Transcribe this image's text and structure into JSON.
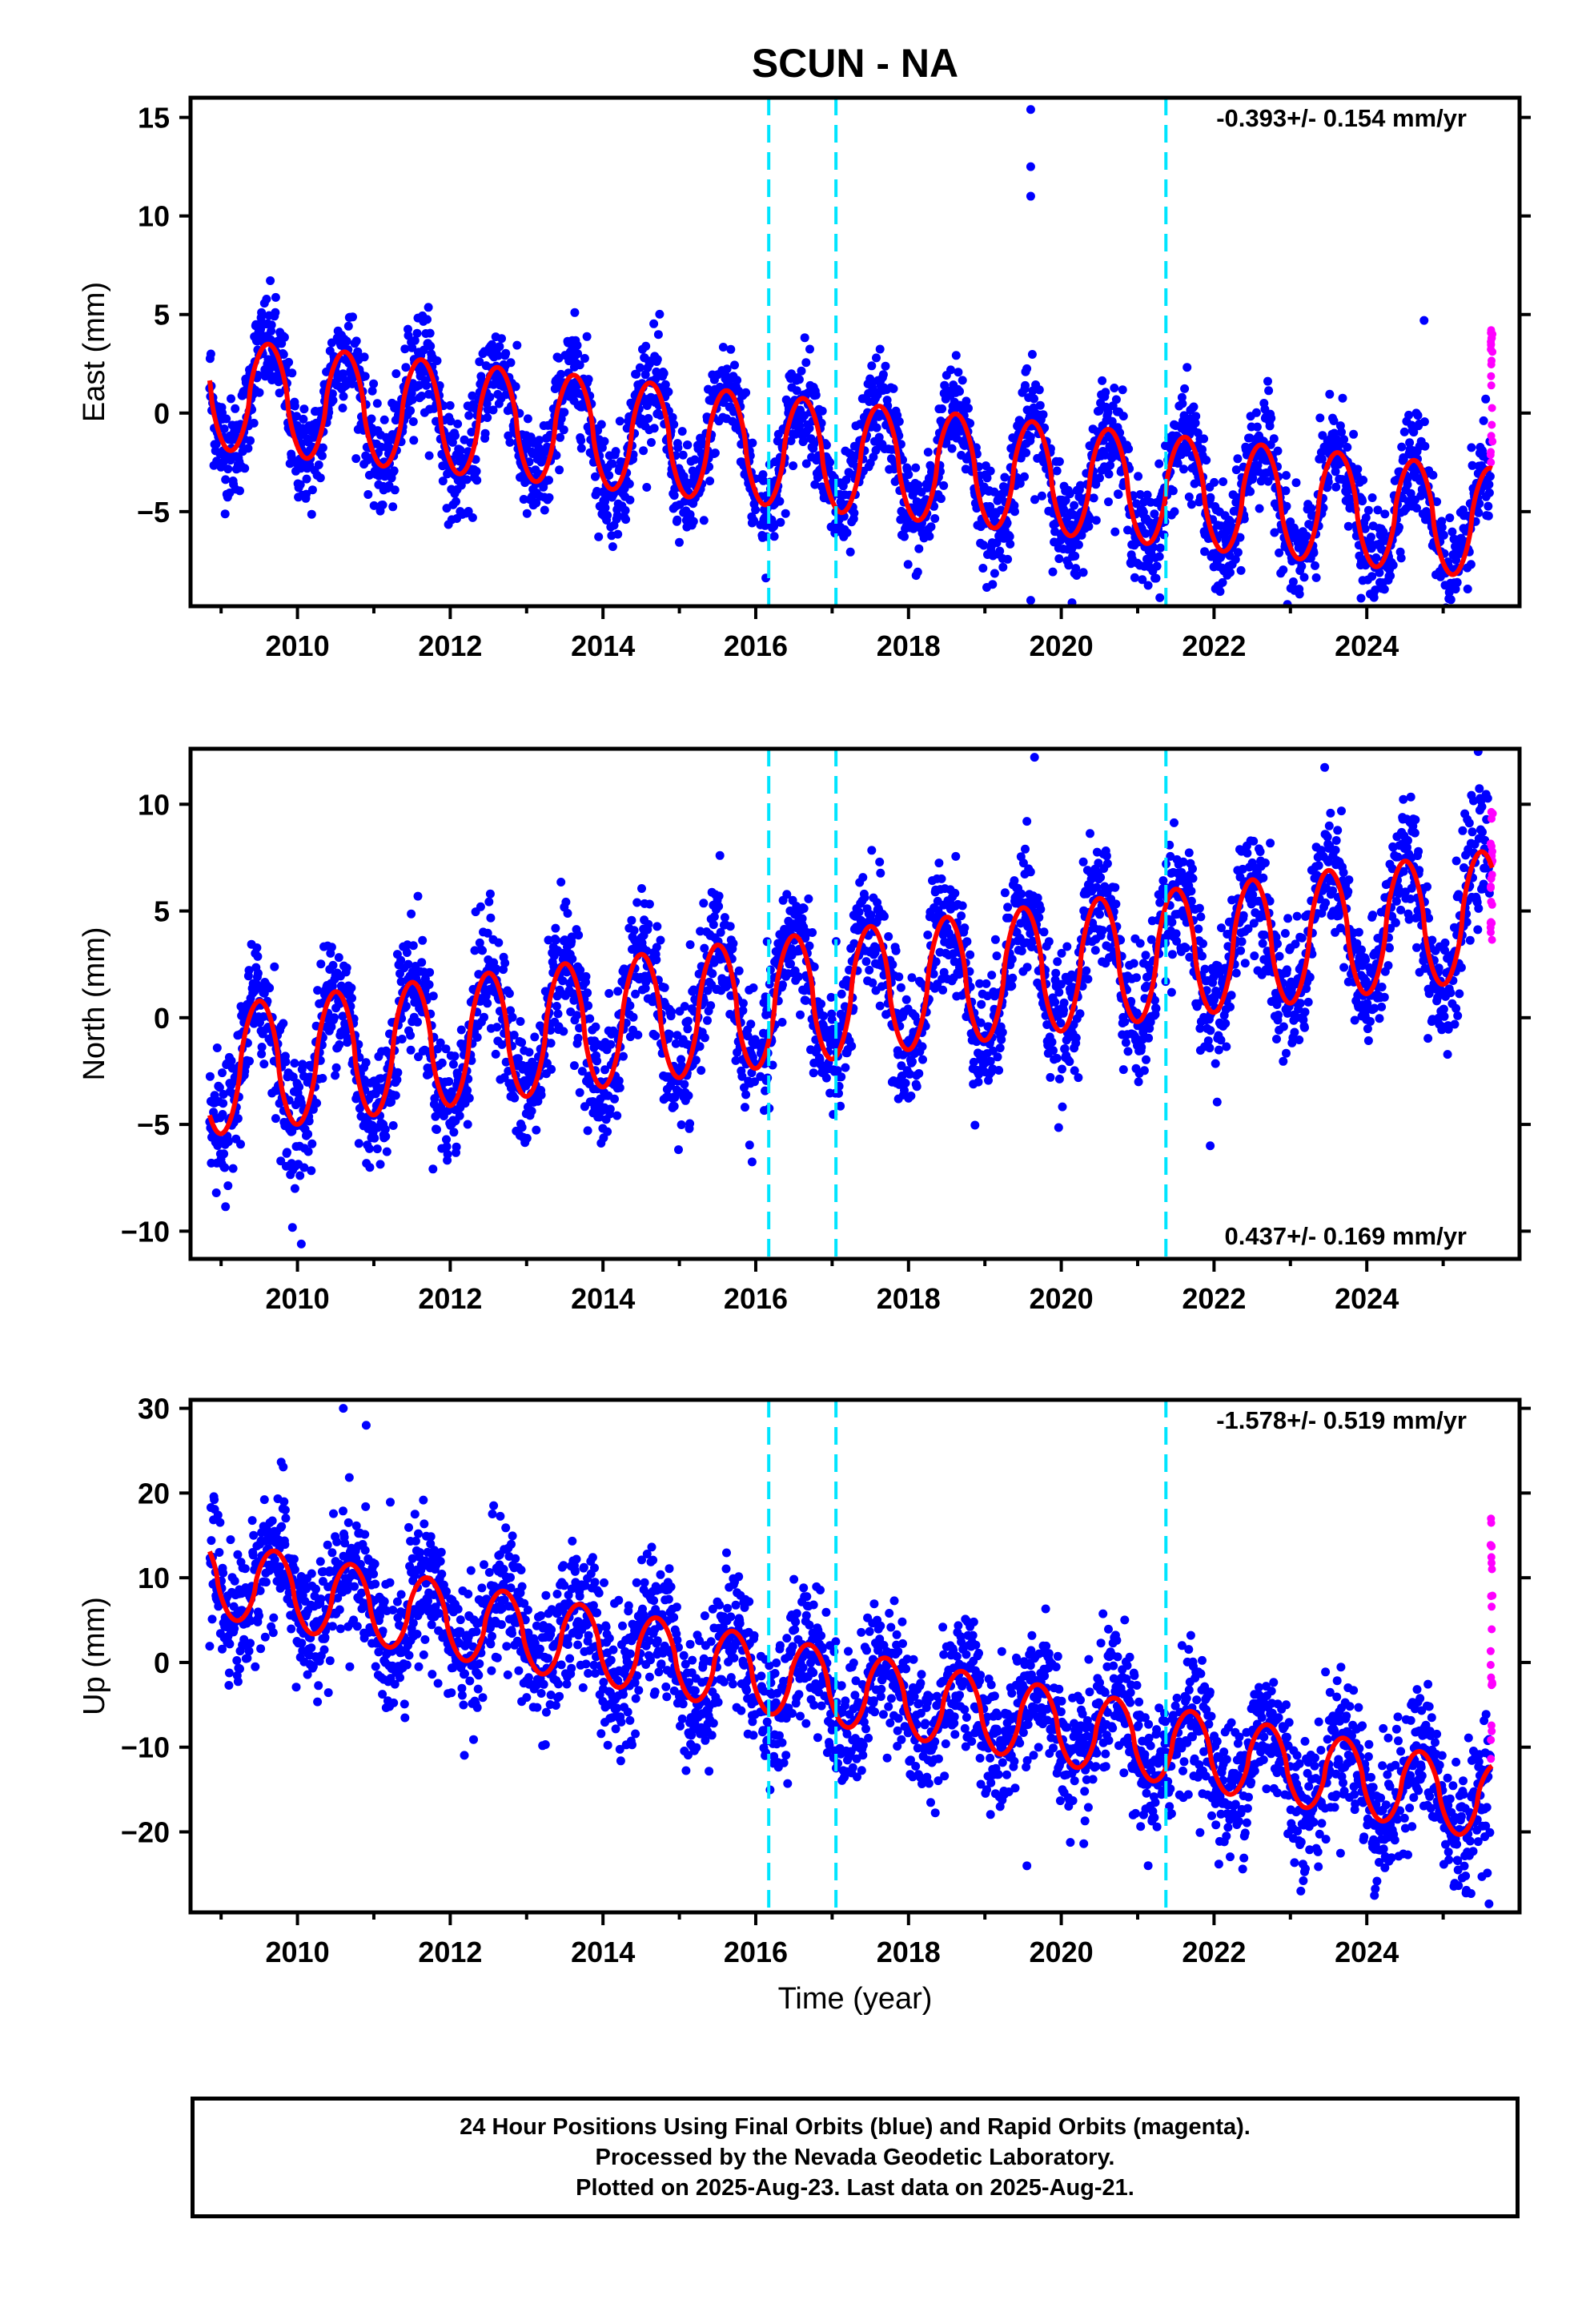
{
  "title": "SCUN - NA",
  "xlabel": "Time (year)",
  "caption": [
    "24 Hour Positions Using Final Orbits (blue) and Rapid Orbits (magenta).",
    "Processed by the Nevada Geodetic Laboratory.",
    "Plotted on 2025-Aug-23. Last data on 2025-Aug-21."
  ],
  "colors": {
    "final_orbits": "#0000ff",
    "rapid_orbits": "#ff00ff",
    "model": "#ff0000",
    "steps": "#00e5ff"
  },
  "chart_data": [
    {
      "type": "scatter",
      "ylabel": "East (mm)",
      "rate_label": "-0.393+/- 0.154 mm/yr",
      "rate_position": "top-right",
      "xlim": [
        2008.6,
        2026.0
      ],
      "ylim": [
        -9.8,
        16.0
      ],
      "yticks": [
        -5,
        0,
        5,
        10,
        15
      ],
      "xticks": [
        2010,
        2012,
        2014,
        2016,
        2018,
        2020,
        2022,
        2024
      ],
      "data_range": [
        2008.85,
        2025.64
      ],
      "steps": [
        2016.17,
        2017.05,
        2021.37
      ],
      "trend_mm_per_yr": -0.393,
      "model": {
        "offset": 1.0,
        "amplitude": 2.8,
        "phase_year": 0.62,
        "noise_sigma": 1.3
      },
      "rapid_range": [
        -3.0,
        4.3
      ],
      "outliers": [
        [
          2019.6,
          15.4
        ],
        [
          2019.6,
          12.5
        ],
        [
          2019.6,
          11.0
        ],
        [
          2019.6,
          -9.5
        ],
        [
          2024.75,
          4.7
        ]
      ]
    },
    {
      "type": "scatter",
      "ylabel": "North (mm)",
      "rate_label": "0.437+/- 0.169 mm/yr",
      "rate_position": "bottom-right",
      "xlim": [
        2008.6,
        2026.0
      ],
      "ylim": [
        -11.3,
        12.6
      ],
      "yticks": [
        -10,
        -5,
        0,
        5,
        10
      ],
      "xticks": [
        2010,
        2012,
        2014,
        2016,
        2018,
        2020,
        2022,
        2024
      ],
      "data_range": [
        2008.85,
        2025.64
      ],
      "steps": [
        2016.17,
        2017.05,
        2021.37
      ],
      "trend_mm_per_yr": 0.437,
      "model": {
        "offset": -2.5,
        "amplitude": 3.0,
        "phase_year": 0.5,
        "noise_sigma": 1.5
      },
      "rapid_range": [
        3.6,
        9.8
      ],
      "outliers": [
        [
          2019.65,
          12.2
        ],
        [
          2010.05,
          -10.6
        ],
        [
          2019.55,
          9.2
        ],
        [
          2021.95,
          -6.0
        ]
      ]
    },
    {
      "type": "scatter",
      "ylabel": "Up (mm)",
      "rate_label": "-1.578+/- 0.519 mm/yr",
      "rate_position": "top-right",
      "xlim": [
        2008.6,
        2026.0
      ],
      "ylim": [
        -29.5,
        31.0
      ],
      "yticks": [
        -20,
        -10,
        0,
        10,
        20,
        30
      ],
      "xticks": [
        2010,
        2012,
        2014,
        2016,
        2018,
        2020,
        2022,
        2024
      ],
      "data_range": [
        2008.85,
        2025.64
      ],
      "steps": [
        2016.17,
        2017.05,
        2021.37
      ],
      "trend_mm_per_yr": -1.578,
      "model": {
        "offset": 10.0,
        "amplitude": 4.5,
        "phase_year": 0.7,
        "noise_sigma": 4.0
      },
      "rapid_range": [
        -13.0,
        17.0
      ],
      "outliers": [
        [
          2010.6,
          30.0
        ],
        [
          2010.9,
          28.0
        ],
        [
          2019.55,
          -24.0
        ],
        [
          2024.1,
          -27.5
        ],
        [
          2025.6,
          -28.5
        ]
      ]
    }
  ]
}
